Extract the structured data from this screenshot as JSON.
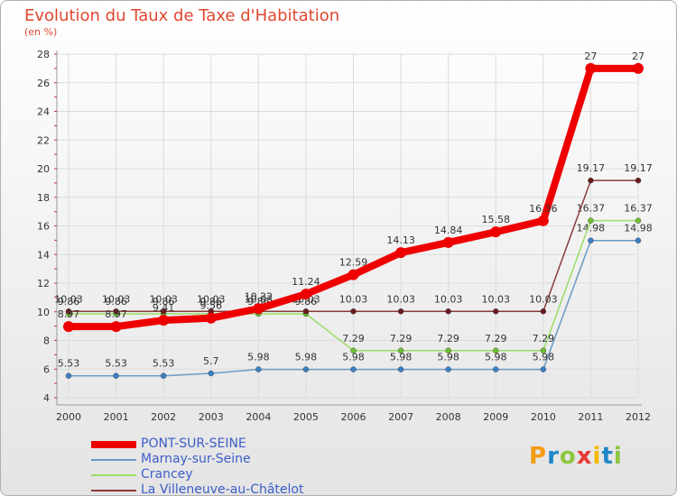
{
  "title": "Evolution du Taux de Taxe d'Habitation",
  "unit_label": "(en %)",
  "brand": {
    "text": "Proxiti",
    "letters": [
      {
        "ch": "P",
        "color": "#f39c12"
      },
      {
        "ch": "r",
        "color": "#1e88c7"
      },
      {
        "ch": "o",
        "color": "#8cc63f"
      },
      {
        "ch": "x",
        "color": "#e53935"
      },
      {
        "ch": "i",
        "color": "#f5b800"
      },
      {
        "ch": "t",
        "color": "#1e88c7"
      },
      {
        "ch": "i",
        "color": "#8cc63f"
      }
    ]
  },
  "chart_data": {
    "type": "line",
    "title": "Evolution du Taux de Taxe d'Habitation",
    "ylabel": "(en %)",
    "xlabel": "",
    "x": [
      "2000",
      "2001",
      "2002",
      "2003",
      "2004",
      "2005",
      "2006",
      "2007",
      "2008",
      "2009",
      "2010",
      "2011",
      "2012"
    ],
    "ylim": [
      4,
      28
    ],
    "yticks": [
      4,
      6,
      8,
      10,
      12,
      14,
      16,
      18,
      20,
      22,
      24,
      26,
      28
    ],
    "grid": true,
    "legend_position": "bottom-left",
    "series": [
      {
        "name": "PONT-SUR-SEINE",
        "color": "#ee0000",
        "emphasis": true,
        "values": [
          8.97,
          8.97,
          9.41,
          9.56,
          10.22,
          11.24,
          12.59,
          14.13,
          14.84,
          15.58,
          16.36,
          27,
          27
        ],
        "labels": [
          "8.97",
          "8.97",
          "9.41",
          "9.56",
          "10.22",
          "11.24",
          "12.59",
          "14.13",
          "14.84",
          "15.58",
          "16.36",
          "27",
          "27"
        ]
      },
      {
        "name": "Marnay-sur-Seine",
        "color": "#6a9bc4",
        "point_color": "#3a7fc4",
        "values": [
          5.53,
          5.53,
          5.53,
          5.7,
          5.98,
          5.98,
          5.98,
          5.98,
          5.98,
          5.98,
          5.98,
          14.98,
          14.98
        ],
        "labels": [
          "5.53",
          "5.53",
          "5.53",
          "5.7",
          "5.98",
          "5.98",
          "5.98",
          "5.98",
          "5.98",
          "5.98",
          "5.98",
          "14.98",
          "14.98"
        ]
      },
      {
        "name": "Crancey",
        "color": "#99dd66",
        "point_color": "#6cc030",
        "values": [
          9.86,
          9.86,
          9.86,
          9.86,
          9.86,
          9.86,
          7.29,
          7.29,
          7.29,
          7.29,
          7.29,
          16.37,
          16.37
        ],
        "labels": [
          "9.86",
          "9.86",
          "9.86",
          "9.86",
          "9.86",
          "9.86",
          "7.29",
          "7.29",
          "7.29",
          "7.29",
          "7.29",
          "16.37",
          "16.37"
        ]
      },
      {
        "name": "La Villeneuve-au-Châtelot",
        "color": "#8a3c3c",
        "point_color": "#6a1c1c",
        "values": [
          10.03,
          10.03,
          10.03,
          10.03,
          10.03,
          10.03,
          10.03,
          10.03,
          10.03,
          10.03,
          10.03,
          19.17,
          19.17
        ],
        "labels": [
          "10.03",
          "10.03",
          "10.03",
          "10.03",
          "10.03",
          "10.03",
          "10.03",
          "10.03",
          "10.03",
          "10.03",
          "10.03",
          "19.17",
          "19.17"
        ]
      }
    ]
  }
}
